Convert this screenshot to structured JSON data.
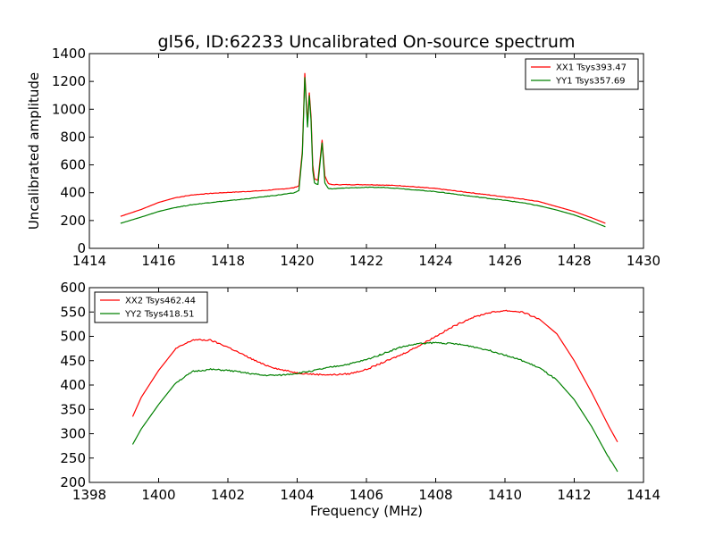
{
  "figure": {
    "title": "gl56, ID:62233 Uncalibrated On-source spectrum"
  },
  "chart_data": [
    {
      "type": "line",
      "title": "gl56, ID:62233 Uncalibrated On-source spectrum",
      "xlabel": "",
      "ylabel": "Uncalibrated amplitude",
      "xlim": [
        1414,
        1430
      ],
      "ylim": [
        0,
        1400
      ],
      "xticks": [
        1414,
        1416,
        1418,
        1420,
        1422,
        1424,
        1426,
        1428,
        1430
      ],
      "yticks": [
        0,
        200,
        400,
        600,
        800,
        1000,
        1200,
        1400
      ],
      "grid": false,
      "legend_position": "top-right",
      "series": [
        {
          "name": "XX1 Tsys393.47",
          "color": "#ff0000",
          "x": [
            1414.9,
            1415.5,
            1416.0,
            1416.5,
            1417.0,
            1417.5,
            1418.0,
            1418.5,
            1419.0,
            1419.5,
            1419.9,
            1420.05,
            1420.15,
            1420.22,
            1420.3,
            1420.35,
            1420.4,
            1420.45,
            1420.5,
            1420.6,
            1420.72,
            1420.8,
            1420.9,
            1421.0,
            1421.5,
            1422.0,
            1422.5,
            1423.0,
            1423.5,
            1424.0,
            1424.5,
            1425.0,
            1425.5,
            1426.0,
            1426.5,
            1427.0,
            1427.5,
            1428.0,
            1428.5,
            1428.9
          ],
          "values": [
            230,
            280,
            330,
            365,
            385,
            395,
            402,
            408,
            415,
            425,
            435,
            450,
            700,
            1260,
            900,
            1120,
            950,
            600,
            500,
            490,
            780,
            520,
            465,
            458,
            458,
            458,
            455,
            450,
            440,
            430,
            415,
            400,
            385,
            370,
            355,
            335,
            300,
            265,
            220,
            180
          ]
        },
        {
          "name": "YY1 Tsys357.69",
          "color": "#008000",
          "x": [
            1414.9,
            1415.5,
            1416.0,
            1416.5,
            1417.0,
            1417.5,
            1418.0,
            1418.5,
            1419.0,
            1419.5,
            1419.9,
            1420.05,
            1420.15,
            1420.22,
            1420.3,
            1420.35,
            1420.4,
            1420.45,
            1420.5,
            1420.6,
            1420.72,
            1420.8,
            1420.9,
            1421.0,
            1421.5,
            1422.0,
            1422.5,
            1423.0,
            1423.5,
            1424.0,
            1424.5,
            1425.0,
            1425.5,
            1426.0,
            1426.5,
            1427.0,
            1427.5,
            1428.0,
            1428.5,
            1428.9
          ],
          "values": [
            180,
            225,
            265,
            295,
            315,
            330,
            342,
            355,
            370,
            385,
            398,
            415,
            680,
            1230,
            870,
            1100,
            920,
            560,
            470,
            460,
            760,
            470,
            430,
            428,
            435,
            438,
            438,
            430,
            418,
            408,
            392,
            375,
            360,
            345,
            328,
            305,
            275,
            240,
            195,
            155
          ]
        }
      ]
    },
    {
      "type": "line",
      "title": "",
      "xlabel": "Frequency (MHz)",
      "ylabel": "",
      "xlim": [
        1398,
        1414
      ],
      "ylim": [
        200,
        600
      ],
      "xticks": [
        1398,
        1400,
        1402,
        1404,
        1406,
        1408,
        1410,
        1412,
        1414
      ],
      "yticks": [
        200,
        250,
        300,
        350,
        400,
        450,
        500,
        550,
        600
      ],
      "grid": false,
      "legend_position": "top-left",
      "series": [
        {
          "name": "XX2 Tsys462.44",
          "color": "#ff0000",
          "x": [
            1399.25,
            1399.5,
            1400.0,
            1400.5,
            1401.0,
            1401.5,
            1402.0,
            1402.5,
            1403.0,
            1403.5,
            1404.0,
            1404.5,
            1405.0,
            1405.5,
            1406.0,
            1406.5,
            1407.0,
            1407.5,
            1408.0,
            1408.5,
            1409.0,
            1409.5,
            1410.0,
            1410.5,
            1411.0,
            1411.5,
            1412.0,
            1412.5,
            1413.0,
            1413.25
          ],
          "values": [
            335,
            375,
            430,
            475,
            493,
            492,
            478,
            460,
            443,
            432,
            425,
            422,
            421,
            423,
            432,
            447,
            462,
            480,
            500,
            520,
            537,
            548,
            553,
            550,
            535,
            505,
            450,
            385,
            315,
            283
          ]
        },
        {
          "name": "YY2 Tsys418.51",
          "color": "#008000",
          "x": [
            1399.25,
            1399.5,
            1400.0,
            1400.5,
            1401.0,
            1401.5,
            1402.0,
            1402.5,
            1403.0,
            1403.5,
            1404.0,
            1404.5,
            1405.0,
            1405.5,
            1406.0,
            1406.5,
            1407.0,
            1407.5,
            1408.0,
            1408.5,
            1409.0,
            1409.5,
            1410.0,
            1410.5,
            1411.0,
            1411.5,
            1412.0,
            1412.5,
            1413.0,
            1413.25
          ],
          "values": [
            278,
            310,
            360,
            405,
            428,
            432,
            430,
            425,
            420,
            420,
            424,
            430,
            437,
            443,
            452,
            465,
            478,
            485,
            487,
            485,
            480,
            472,
            462,
            450,
            435,
            410,
            370,
            315,
            250,
            222
          ]
        }
      ]
    }
  ]
}
